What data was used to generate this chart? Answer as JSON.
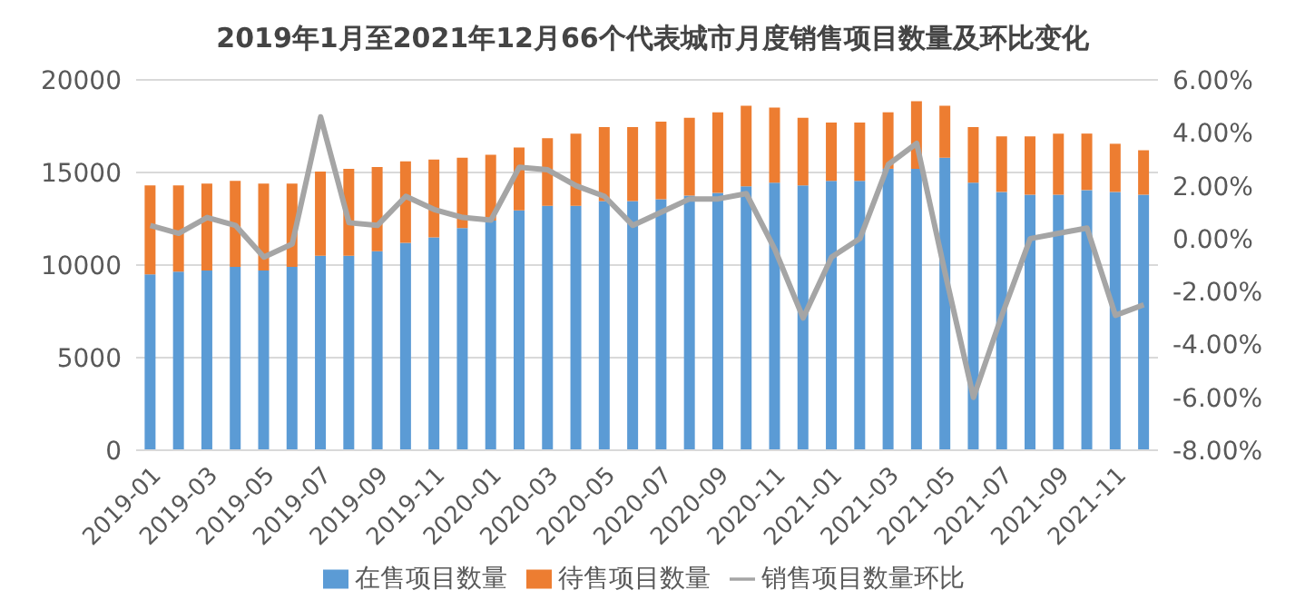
{
  "chart_data": {
    "type": "bar",
    "title": "2019年1月至2021年12月66个代表城市月度销售项目数量及环比变化",
    "stacked": true,
    "grid": "y",
    "legend": "bottom",
    "marker": "none",
    "categories": [
      "2019-01",
      null,
      "2019-03",
      null,
      "2019-05",
      null,
      "2019-07",
      null,
      "2019-09",
      null,
      "2019-11",
      null,
      "2020-01",
      null,
      "2020-03",
      null,
      "2020-05",
      null,
      "2020-07",
      null,
      "2020-09",
      null,
      "2020-11",
      null,
      "2021-01",
      null,
      "2021-03",
      null,
      "2021-05",
      null,
      "2021-07",
      null,
      "2021-09",
      null,
      "2021-11",
      null
    ],
    "ylim": [
      0,
      20000
    ],
    "yticks": [
      0,
      5000,
      10000,
      15000,
      20000
    ],
    "y2lim": [
      -8,
      6
    ],
    "y2ticks": [
      {
        "value": -8,
        "label": "-8.00%"
      },
      {
        "value": -6,
        "label": "-6.00%"
      },
      {
        "value": -4,
        "label": "-4.00%"
      },
      {
        "value": -2,
        "label": "-2.00%"
      },
      {
        "value": 0,
        "label": "0.00%"
      },
      {
        "value": 2,
        "label": "2.00%"
      },
      {
        "value": 4,
        "label": "4.00%"
      },
      {
        "value": 6,
        "label": "6.00%"
      }
    ],
    "series": [
      {
        "name": "在售项目数量",
        "color": "#5b9bd5",
        "values": [
          9500,
          9650,
          9700,
          9900,
          9700,
          9900,
          10500,
          10500,
          10750,
          11200,
          11500,
          12000,
          12400,
          12950,
          13200,
          13200,
          13450,
          13450,
          13550,
          13750,
          13900,
          14250,
          14450,
          14300,
          14550,
          14550,
          15200,
          15200,
          15800,
          14450,
          13950,
          13800,
          13800,
          14050,
          13950,
          13800
        ]
      },
      {
        "name": "待售项目数量",
        "color": "#ed7d31",
        "values": [
          4800,
          4650,
          4700,
          4650,
          4700,
          4500,
          4550,
          4700,
          4550,
          4400,
          4200,
          3800,
          3550,
          3400,
          3650,
          3900,
          4000,
          4000,
          4200,
          4200,
          4350,
          4350,
          4050,
          3650,
          3150,
          3150,
          3050,
          3650,
          2800,
          3000,
          3000,
          3150,
          3300,
          3050,
          2600,
          2400
        ]
      },
      {
        "name": "销售项目数量环比",
        "type": "line",
        "axis": "y2",
        "color": "#a5a5a5",
        "line_style": "solid",
        "values": [
          0.5,
          0.2,
          0.8,
          0.5,
          -0.7,
          -0.2,
          4.6,
          0.6,
          0.5,
          1.6,
          1.1,
          0.8,
          0.7,
          2.7,
          2.6,
          2.0,
          1.6,
          0.5,
          1.0,
          1.5,
          1.5,
          1.7,
          -0.4,
          -3.0,
          -0.7,
          0.0,
          2.8,
          3.6,
          -1.3,
          -6.0,
          -2.9,
          0.0,
          0.2,
          0.4,
          -2.9,
          -2.5
        ]
      }
    ]
  }
}
